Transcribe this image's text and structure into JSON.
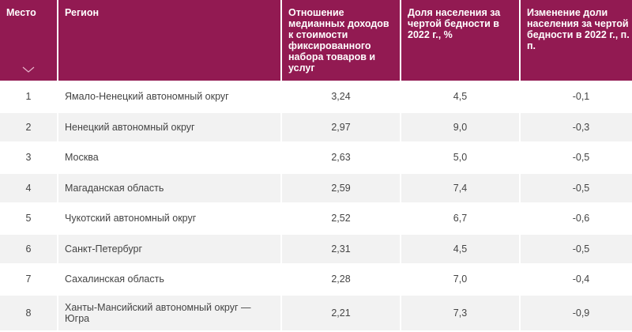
{
  "table": {
    "headers": [
      "Место",
      "Регион",
      "Отношение медианных доходов к стоимости фиксированного набора товаров и услуг",
      "Доля населения за чертой бедности в 2022 г., %",
      "Изменение доли населения за чертой бедности в 2022 г., п. п."
    ],
    "sort_icon": "chevron-down-icon",
    "header_color": "#921a52",
    "rows": [
      [
        "1",
        "Ямало-Ненецкий автономный округ",
        "3,24",
        "4,5",
        "-0,1"
      ],
      [
        "2",
        "Ненецкий автономный округ",
        "2,97",
        "9,0",
        "-0,3"
      ],
      [
        "3",
        "Москва",
        "2,63",
        "5,0",
        "-0,5"
      ],
      [
        "4",
        "Магаданская область",
        "2,59",
        "7,4",
        "-0,5"
      ],
      [
        "5",
        "Чукотский автономный округ",
        "2,52",
        "6,7",
        "-0,6"
      ],
      [
        "6",
        "Санкт-Петербург",
        "2,31",
        "4,5",
        "-0,5"
      ],
      [
        "7",
        "Сахалинская область",
        "2,28",
        "7,0",
        "-0,4"
      ],
      [
        "8",
        "Ханты-Мансийский автономный округ — Югра",
        "2,21",
        "7,3",
        "-0,9"
      ]
    ]
  }
}
